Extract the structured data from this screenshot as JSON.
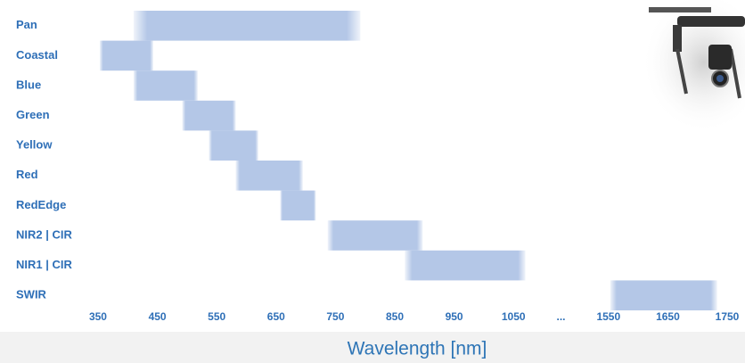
{
  "chart_data": {
    "type": "range-bar",
    "color": "#b4c7e7",
    "x_label": "Wavelength [nm]",
    "categories": [
      "Pan",
      "Coastal",
      "Blue",
      "Green",
      "Yellow",
      "Red",
      "RedEdge",
      "NIR2 | CIR",
      "NIR1 | CIR",
      "SWIR"
    ],
    "ranges": [
      [
        410,
        792
      ],
      [
        353,
        443
      ],
      [
        410,
        518
      ],
      [
        492,
        582
      ],
      [
        537,
        620
      ],
      [
        582,
        695
      ],
      [
        657,
        717
      ],
      [
        737,
        897
      ],
      [
        867,
        1070
      ],
      [
        1553,
        1733
      ]
    ],
    "xlim": [
      320,
      1780
    ],
    "axis_break": {
      "range": [
        1100,
        1500
      ],
      "label": "..."
    },
    "xticks": [
      350,
      450,
      550,
      650,
      750,
      850,
      950,
      1050,
      1550,
      1650,
      1750
    ]
  }
}
